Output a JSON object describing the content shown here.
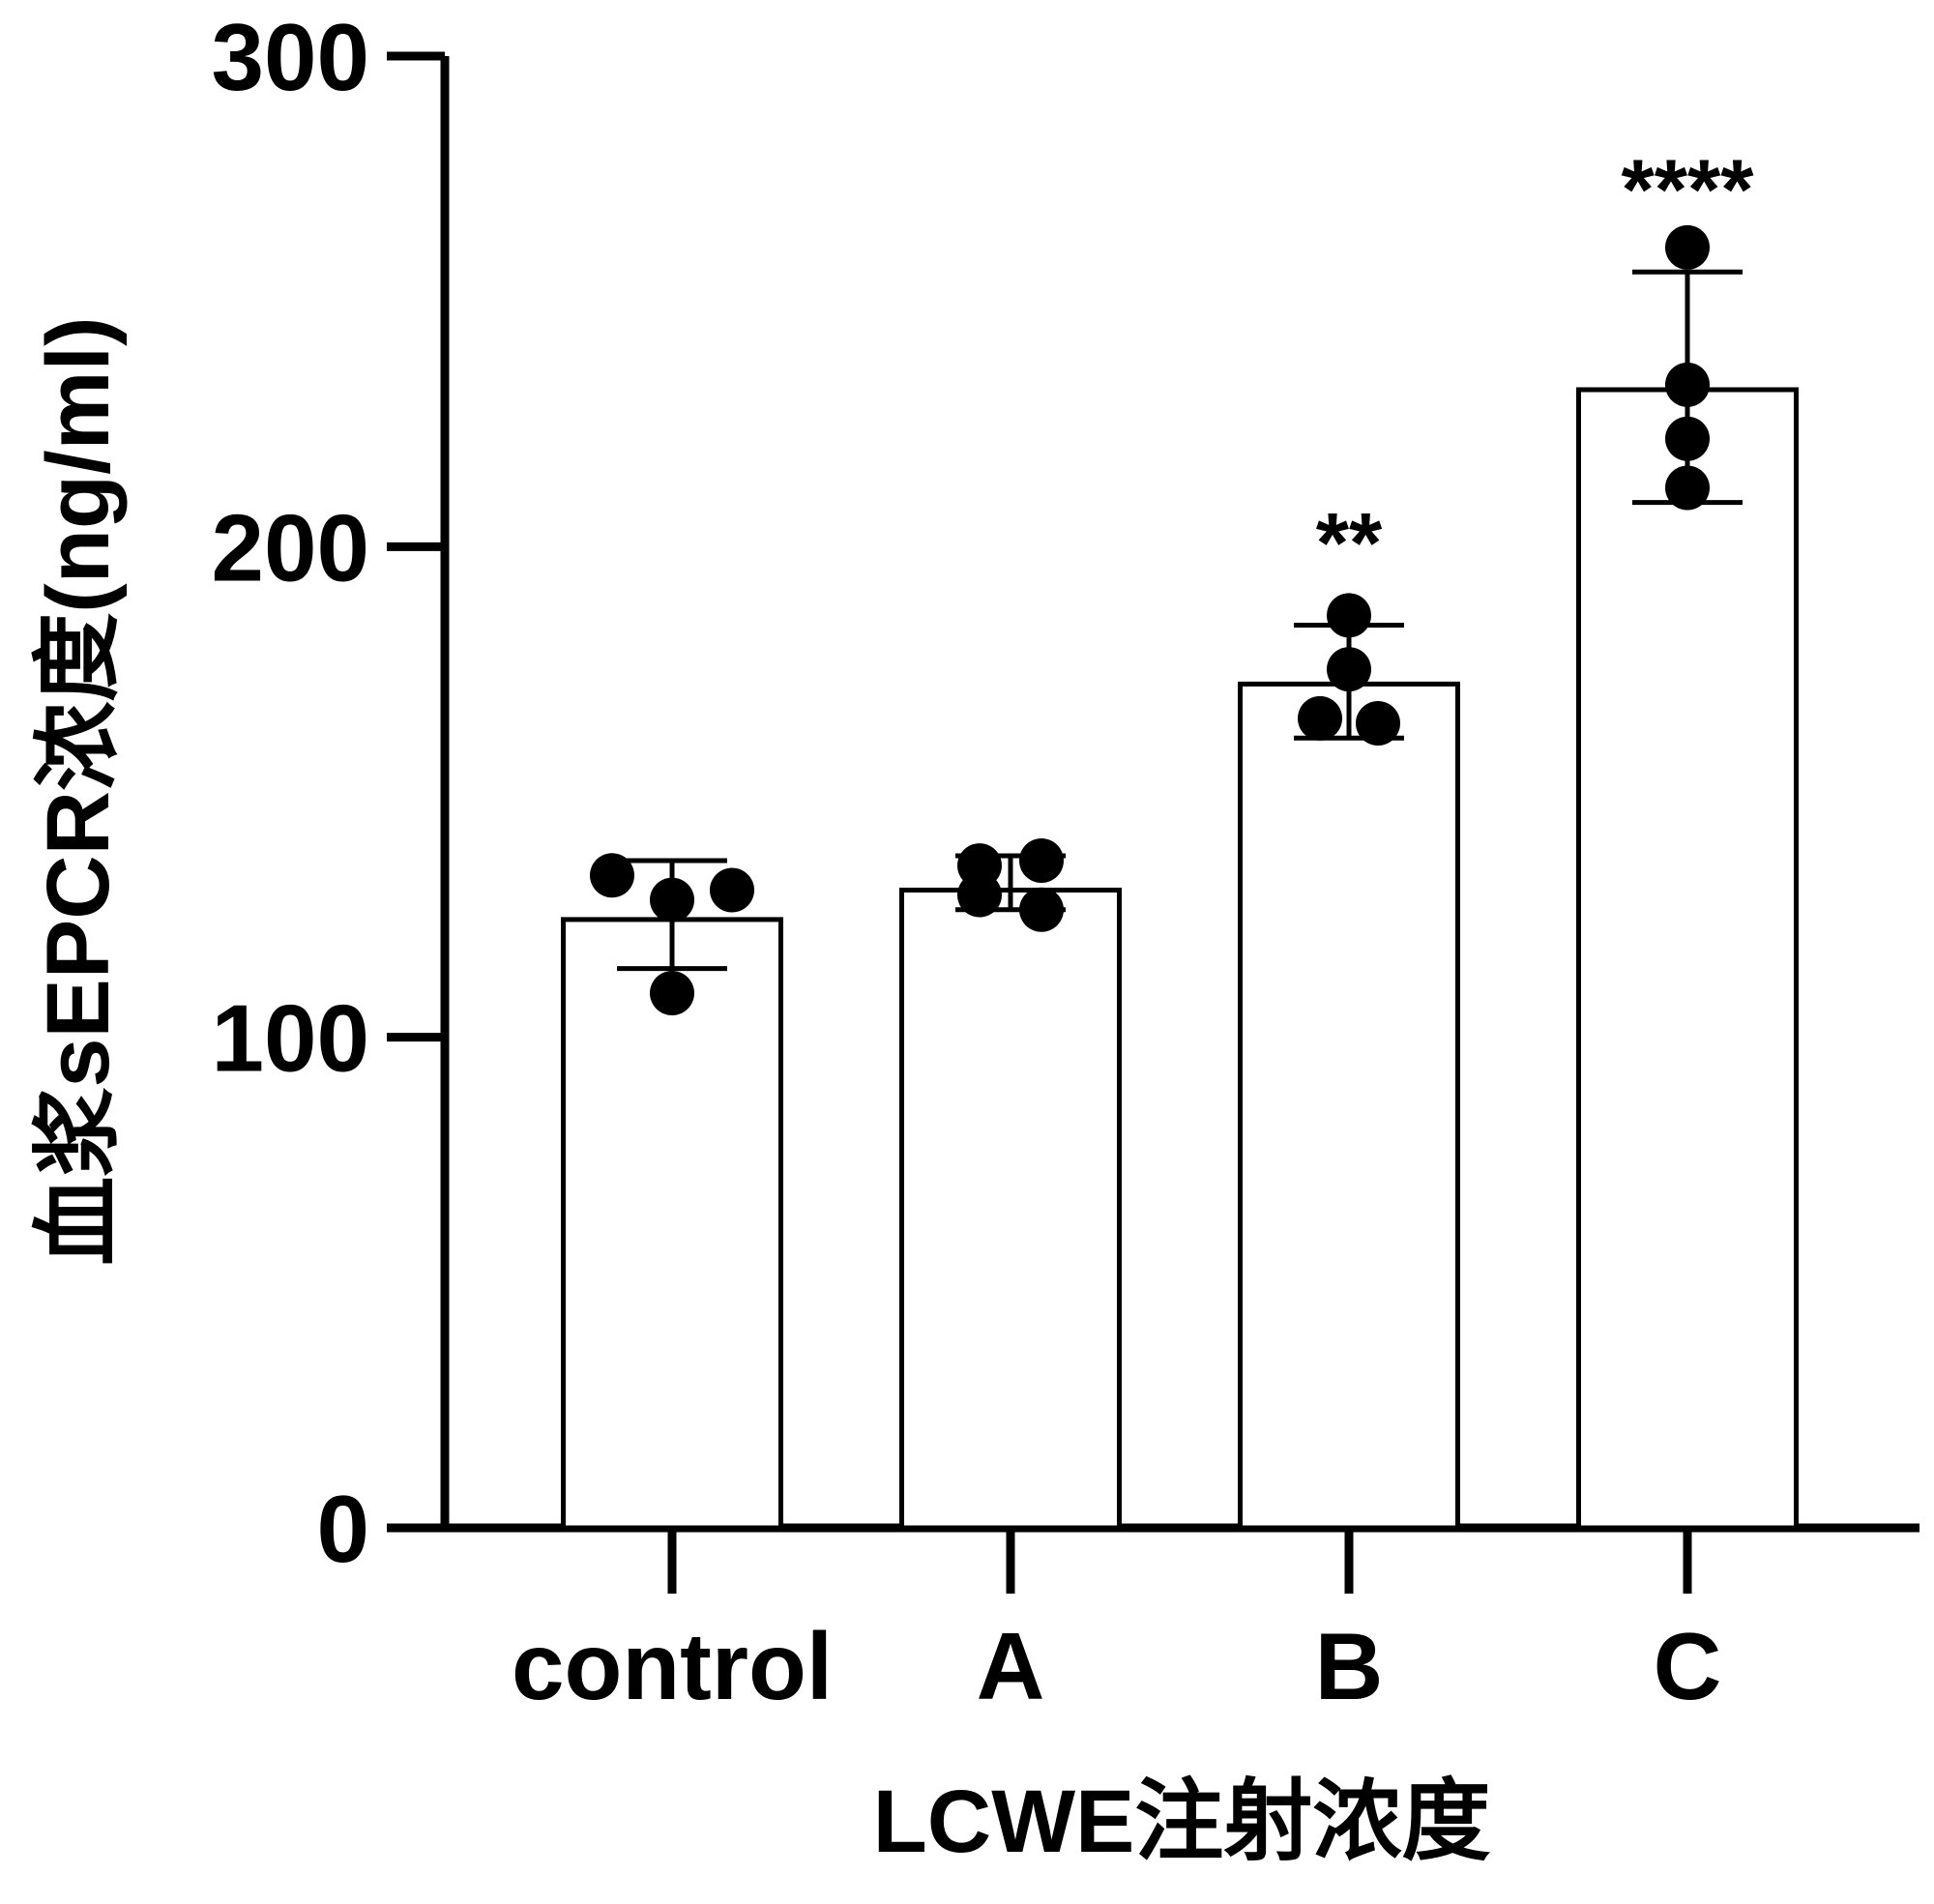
{
  "chart_data": {
    "type": "bar",
    "xlabel": "LCWE注射浓度",
    "ylabel": "血浆sEPCR浓度(ng/ml)",
    "ylim": [
      0,
      300
    ],
    "yticks": [
      "0",
      "100",
      "200",
      "300"
    ],
    "grid": false,
    "categories": [
      "control",
      "A",
      "B",
      "C"
    ],
    "values": [
      124,
      130,
      172,
      232
    ],
    "error": [
      {
        "low": 114,
        "high": 136
      },
      {
        "low": 126,
        "high": 137
      },
      {
        "low": 161,
        "high": 184
      },
      {
        "low": 209,
        "high": 256
      }
    ],
    "points": [
      [
        133,
        128,
        130,
        109
      ],
      [
        135,
        136,
        129,
        126
      ],
      [
        186,
        175,
        165,
        164
      ],
      [
        261,
        233,
        222,
        212
      ]
    ],
    "significance": [
      "",
      "",
      "**",
      "****"
    ],
    "colors": {
      "bar_fill": "#ffffff",
      "stroke": "#000000",
      "point": "#000000"
    }
  }
}
